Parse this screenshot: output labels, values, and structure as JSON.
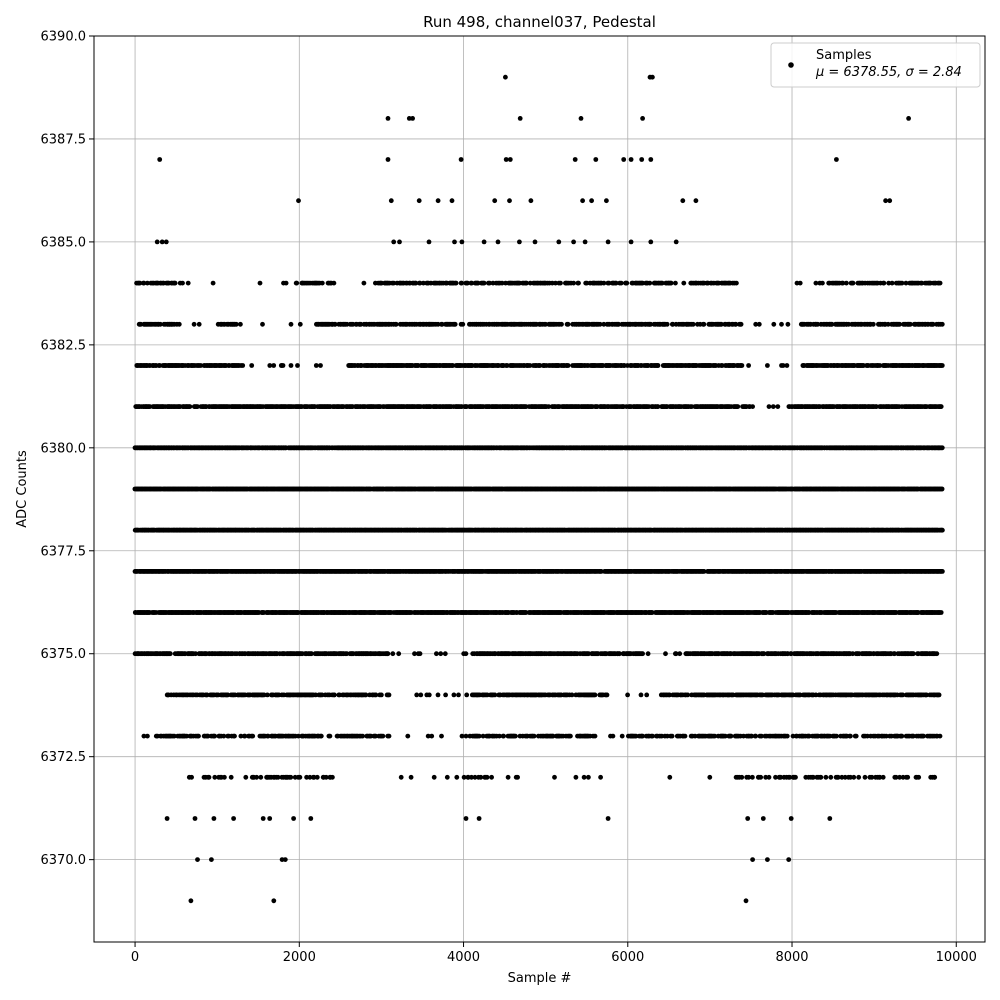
{
  "chart_data": {
    "type": "scatter",
    "title": "Run 498, channel037, Pedestal",
    "xlabel": "Sample #",
    "ylabel": "ADC Counts",
    "xlim": [
      -500,
      10350
    ],
    "ylim": [
      6368.0,
      6390.0
    ],
    "x_ticks": [
      0,
      2000,
      4000,
      6000,
      8000,
      10000
    ],
    "x_tick_labels": [
      "0",
      "2000",
      "4000",
      "6000",
      "8000",
      "10000"
    ],
    "y_ticks": [
      6370.0,
      6372.5,
      6375.0,
      6377.5,
      6380.0,
      6382.5,
      6385.0,
      6387.5,
      6390.0
    ],
    "y_tick_labels": [
      "6370.0",
      "6372.5",
      "6375.0",
      "6377.5",
      "6380.0",
      "6382.5",
      "6385.0",
      "6387.5",
      "6390.0"
    ],
    "grid": true,
    "legend_position": "upper right",
    "marker_color": "#000000",
    "series": [
      {
        "name": "Samples",
        "stats_label": "μ = 6378.55, σ = 2.84",
        "mean": 6378.55,
        "sigma": 2.84,
        "x_max": 9830,
        "points": [
          [
            680,
            6369
          ],
          [
            1690,
            6369
          ],
          [
            7440,
            6369
          ],
          [
            760,
            6370
          ],
          [
            930,
            6370
          ],
          [
            1790,
            6370
          ],
          [
            1830,
            6370
          ],
          [
            7520,
            6370
          ],
          [
            7700,
            6370
          ],
          [
            7960,
            6370
          ],
          [
            390,
            6371
          ],
          [
            730,
            6371
          ],
          [
            960,
            6371
          ],
          [
            1200,
            6371
          ],
          [
            1560,
            6371
          ],
          [
            1640,
            6371
          ],
          [
            1930,
            6371
          ],
          [
            2140,
            6371
          ],
          [
            4030,
            6371
          ],
          [
            4190,
            6371
          ],
          [
            5760,
            6371
          ],
          [
            7460,
            6371
          ],
          [
            7650,
            6371
          ],
          [
            7990,
            6371
          ],
          [
            8460,
            6371
          ],
          [
            4510,
            6389
          ],
          [
            6270,
            6389
          ],
          [
            6300,
            6389
          ],
          [
            3080,
            6388
          ],
          [
            3340,
            6388
          ],
          [
            3380,
            6388
          ],
          [
            4690,
            6388
          ],
          [
            5430,
            6388
          ],
          [
            6180,
            6388
          ],
          [
            9420,
            6388
          ],
          [
            300,
            6387
          ],
          [
            3080,
            6387
          ],
          [
            3970,
            6387
          ],
          [
            4520,
            6387
          ],
          [
            4570,
            6387
          ],
          [
            5360,
            6387
          ],
          [
            5610,
            6387
          ],
          [
            5950,
            6387
          ],
          [
            6040,
            6387
          ],
          [
            6170,
            6387
          ],
          [
            6280,
            6387
          ],
          [
            8540,
            6387
          ],
          [
            1990,
            6386
          ],
          [
            3120,
            6386
          ],
          [
            3460,
            6386
          ],
          [
            3690,
            6386
          ],
          [
            3860,
            6386
          ],
          [
            4380,
            6386
          ],
          [
            4560,
            6386
          ],
          [
            4820,
            6386
          ],
          [
            5450,
            6386
          ],
          [
            5560,
            6386
          ],
          [
            5740,
            6386
          ],
          [
            6670,
            6386
          ],
          [
            6830,
            6386
          ],
          [
            9140,
            6386
          ],
          [
            9190,
            6386
          ],
          [
            270,
            6385
          ],
          [
            330,
            6385
          ],
          [
            380,
            6385
          ],
          [
            3150,
            6385
          ],
          [
            3220,
            6385
          ],
          [
            3580,
            6385
          ],
          [
            3890,
            6385
          ],
          [
            3980,
            6385
          ],
          [
            4250,
            6385
          ],
          [
            4420,
            6385
          ],
          [
            4680,
            6385
          ],
          [
            4870,
            6385
          ],
          [
            5160,
            6385
          ],
          [
            5340,
            6385
          ],
          [
            5480,
            6385
          ],
          [
            5760,
            6385
          ],
          [
            6040,
            6385
          ],
          [
            6280,
            6385
          ],
          [
            6590,
            6385
          ]
        ],
        "band_levels": [
          {
            "y": 6384,
            "x_start": 20,
            "x_end": 9830,
            "gaps": [
              [
                500,
                1950
              ],
              [
                2400,
                2950
              ],
              [
                7300,
                8300
              ]
            ],
            "density": 0.45
          },
          {
            "y": 6383,
            "x_start": 40,
            "x_end": 9830,
            "gaps": [
              [
                520,
                1000
              ],
              [
                1250,
                2200
              ],
              [
                7400,
                8100
              ]
            ],
            "density": 0.6
          },
          {
            "y": 6382,
            "x_start": 0,
            "x_end": 9830,
            "gaps": [
              [
                1300,
                2600
              ],
              [
                7400,
                8100
              ]
            ],
            "density": 0.7
          },
          {
            "y": 6381,
            "x_start": 0,
            "x_end": 9830,
            "gaps": [
              [
                7500,
                7950
              ]
            ],
            "density": 0.8
          },
          {
            "y": 6380,
            "x_start": 0,
            "x_end": 9830,
            "gaps": [],
            "density": 0.92
          },
          {
            "y": 6379,
            "x_start": 0,
            "x_end": 9830,
            "gaps": [],
            "density": 0.97
          },
          {
            "y": 6378,
            "x_start": 0,
            "x_end": 9830,
            "gaps": [],
            "density": 0.97
          },
          {
            "y": 6377,
            "x_start": 0,
            "x_end": 9830,
            "gaps": [],
            "density": 0.93
          },
          {
            "y": 6376,
            "x_start": 0,
            "x_end": 9830,
            "gaps": [],
            "density": 0.85
          },
          {
            "y": 6375,
            "x_start": 0,
            "x_end": 9760,
            "gaps": [
              [
                3100,
                4100
              ],
              [
                6200,
                6700
              ]
            ],
            "density": 0.72
          },
          {
            "y": 6374,
            "x_start": 390,
            "x_end": 9800,
            "gaps": [
              [
                3100,
                4100
              ],
              [
                5800,
                6400
              ]
            ],
            "density": 0.6
          },
          {
            "y": 6373,
            "x_start": 80,
            "x_end": 9830,
            "gaps": [
              [
                3100,
                4000
              ],
              [
                5600,
                6000
              ]
            ],
            "density": 0.45
          },
          {
            "y": 6372,
            "x_start": 650,
            "x_end": 9740,
            "gaps": [
              [
                2400,
                4000
              ],
              [
                4300,
                7300
              ]
            ],
            "density": 0.3
          }
        ]
      }
    ]
  }
}
